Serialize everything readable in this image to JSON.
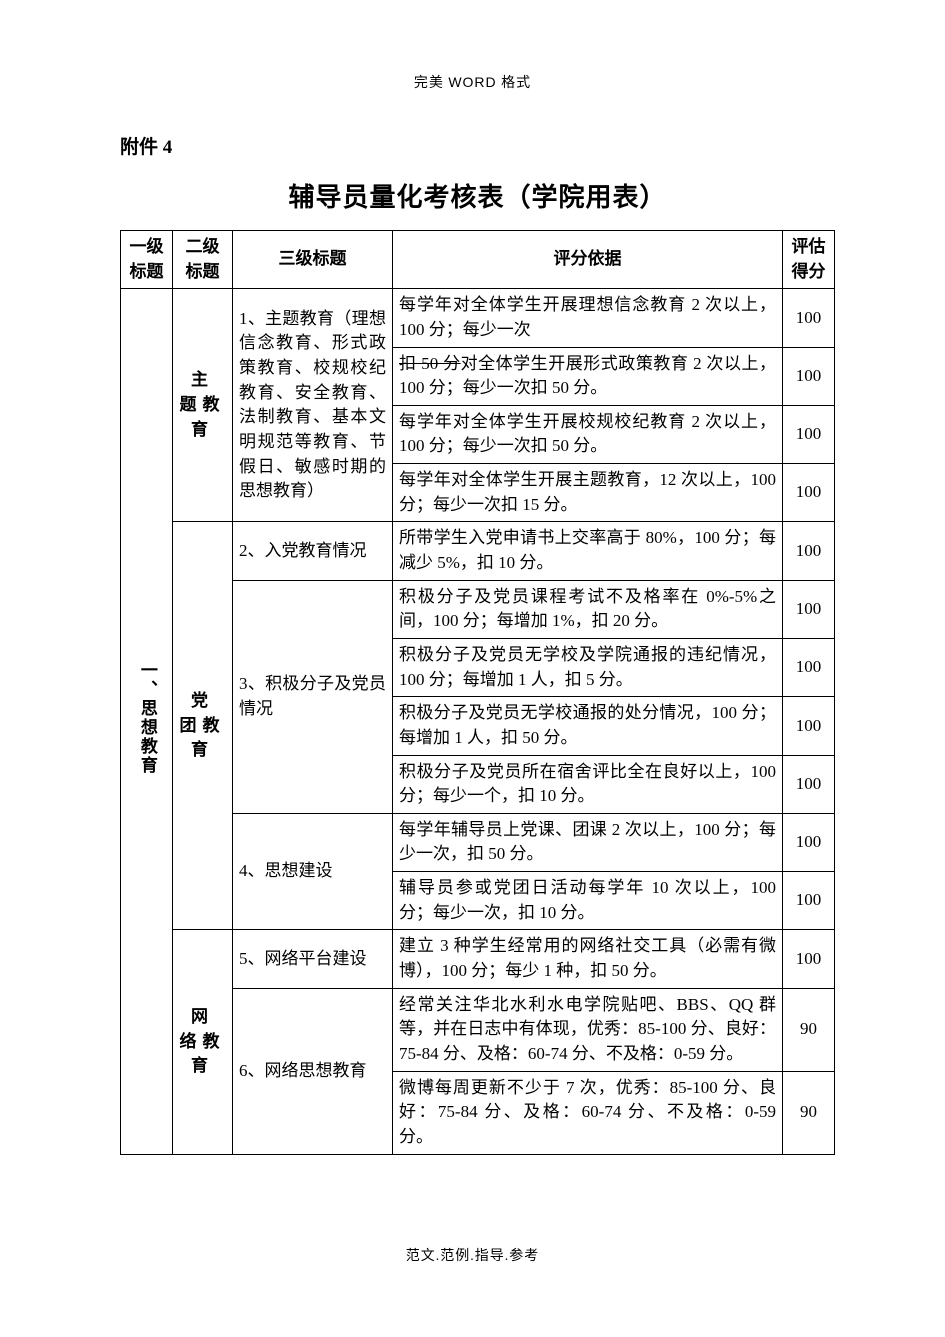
{
  "header": {
    "text_cn": "完美",
    "text_en": "WORD",
    "text_suffix": "格式"
  },
  "attach_label": "附件 4",
  "page_title": "辅导员量化考核表（学院用表）",
  "columns": {
    "c1": "一级标题",
    "c2": "二级标题",
    "c3": "三级标题",
    "c4": "评分依据",
    "c5": "评估得分"
  },
  "level1": "一、思想教育",
  "level2": {
    "a": "主 题教 育",
    "b": "党 团教 育",
    "c": "网 络教 育"
  },
  "level3": {
    "r1": "1、主题教育（理想信念教育、形式政策教育、校规校纪教育、安全教育、法制教育、基本文明规范等教育、节假日、敏感时期的思想教育）",
    "r2": "2、入党教育情况",
    "r3": "3、积极分子及党员情况",
    "r4": "4、思想建设",
    "r5": "5、网络平台建设",
    "r6": "6、网络思想教育"
  },
  "rows": [
    {
      "desc": "每学年对全体学生开展理想信念教育 2 次以上，100 分；每少一次",
      "score": "100"
    },
    {
      "desc_pre": "扣 50 分",
      "desc_post": "对全体学生开展形式政策教育 2 次以上，100 分；每少一次扣 50 分。",
      "score": "100"
    },
    {
      "desc": "每学年对全体学生开展校规校纪教育 2 次以上，100 分；每少一次扣 50 分。",
      "score": "100"
    },
    {
      "desc": "每学年对全体学生开展主题教育，12 次以上，100 分；每少一次扣 15 分。",
      "score": "100"
    },
    {
      "desc": "所带学生入党申请书上交率高于 80%，100 分；每减少 5%，扣 10 分。",
      "score": "100"
    },
    {
      "desc": "积极分子及党员课程考试不及格率在 0%-5%之间，100 分；每增加 1%，扣 20 分。",
      "score": "100"
    },
    {
      "desc": "积极分子及党员无学校及学院通报的违纪情况，100 分；每增加 1 人，扣 5 分。",
      "score": "100"
    },
    {
      "desc": "积极分子及党员无学校通报的处分情况，100 分；每增加 1 人，扣 50 分。",
      "score": "100"
    },
    {
      "desc": "积极分子及党员所在宿舍评比全在良好以上，100 分；每少一个，扣 10 分。",
      "score": "100"
    },
    {
      "desc": "每学年辅导员上党课、团课 2 次以上，100 分；每少一次，扣 50 分。",
      "score": "100"
    },
    {
      "desc": "辅导员参或党团日活动每学年 10 次以上，100 分；每少一次，扣 10 分。",
      "score": "100"
    },
    {
      "desc": "建立 3 种学生经常用的网络社交工具（必需有微博），100 分；每少 1 种，扣 50 分。",
      "score": "100"
    },
    {
      "desc": "经常关注华北水利水电学院贴吧、BBS、QQ 群等，并在日志中有体现，优秀：85-100 分、良好：75-84 分、及格：60-74 分、不及格：0-59 分。",
      "score": "90"
    },
    {
      "desc": "微博每周更新不少于 7 次，优秀：85-100 分、良好：75-84 分、及格：60-74 分、不及格：0-59 分。",
      "score": "90"
    }
  ],
  "footer": "范文.范例.指导.参考"
}
